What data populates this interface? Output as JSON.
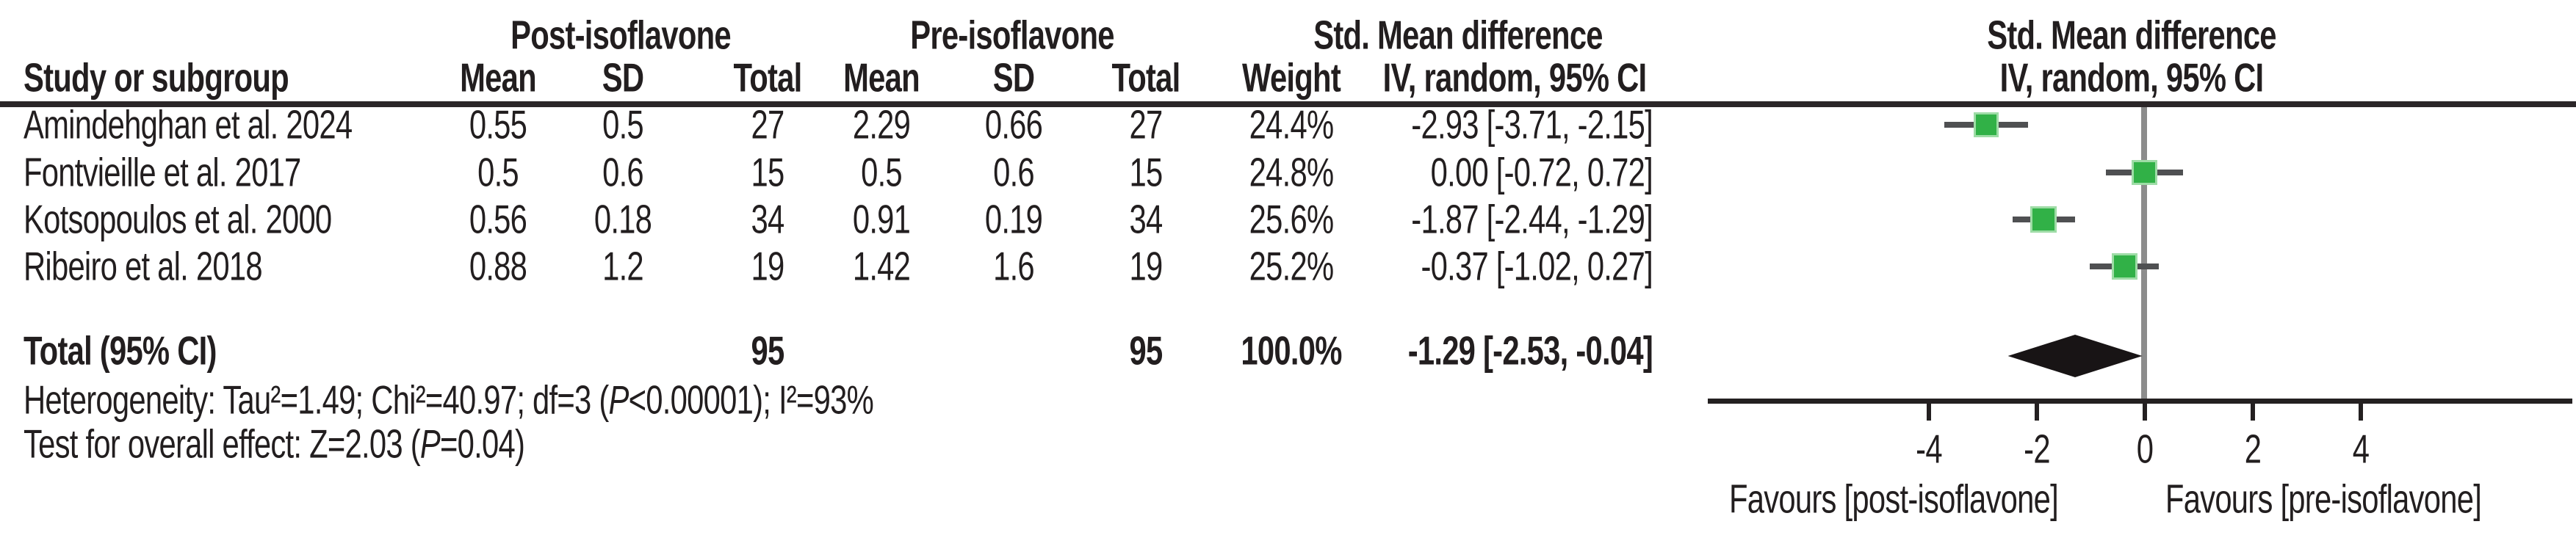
{
  "header": {
    "study_col": "Study or subgroup",
    "group_post": "Post-isoflavone",
    "group_pre": "Pre-isoflavone",
    "group_smd_table": "Std. Mean difference",
    "group_smd_plot": "Std. Mean difference",
    "mean": "Mean",
    "sd": "SD",
    "total": "Total",
    "weight": "Weight",
    "iv_table": "IV, random, 95% CI",
    "iv_plot": "IV, random, 95% CI"
  },
  "rows": [
    {
      "study": "Amindehghan et al. 2024",
      "post_mean": "0.55",
      "post_sd": "0.5",
      "post_total": "27",
      "pre_mean": "2.29",
      "pre_sd": "0.66",
      "pre_total": "27",
      "weight": "24.4%",
      "smd_ci": "-2.93 [-3.71, -2.15]"
    },
    {
      "study": "Fontvieille et al. 2017",
      "post_mean": "0.5",
      "post_sd": "0.6",
      "post_total": "15",
      "pre_mean": "0.5",
      "pre_sd": "0.6",
      "pre_total": "15",
      "weight": "24.8%",
      "smd_ci": "0.00 [-0.72, 0.72]"
    },
    {
      "study": "Kotsopoulos et al. 2000",
      "post_mean": "0.56",
      "post_sd": "0.18",
      "post_total": "34",
      "pre_mean": "0.91",
      "pre_sd": "0.19",
      "pre_total": "34",
      "weight": "25.6%",
      "smd_ci": "-1.87 [-2.44, -1.29]"
    },
    {
      "study": "Ribeiro et al. 2018",
      "post_mean": "0.88",
      "post_sd": "1.2",
      "post_total": "19",
      "pre_mean": "1.42",
      "pre_sd": "1.6",
      "pre_total": "19",
      "weight": "25.2%",
      "smd_ci": "-0.37 [-1.02, 0.27]"
    }
  ],
  "total_row": {
    "label": "Total (95% CI)",
    "post_total": "95",
    "pre_total": "95",
    "weight": "100.0%",
    "smd_ci": "-1.29 [-2.53, -0.04]"
  },
  "footer": {
    "heterogeneity_prefix": "Heterogeneity: Tau²=1.49; Chi²=40.97; df=3 (",
    "heterogeneity_p": "P",
    "heterogeneity_suffix": "<0.00001); I²=93%",
    "effect_prefix": "Test for overall effect: Z=2.03 (",
    "effect_p": "P",
    "effect_suffix": "=0.04)"
  },
  "axis": {
    "ticks": [
      {
        "value": -4,
        "label": "-4"
      },
      {
        "value": -2,
        "label": "-2"
      },
      {
        "value": 0,
        "label": "0"
      },
      {
        "value": 2,
        "label": "2"
      },
      {
        "value": 4,
        "label": "4"
      }
    ],
    "favours_left": "Favours [post-isoflavone]",
    "favours_right": "Favours [pre-isoflavone]"
  },
  "colors": {
    "marker_green": "#31b147",
    "marker_halo": "#9edca6",
    "ci_line": "#4f5052",
    "diamond_black": "#181415",
    "zero_line_gray": "#8c8c8c",
    "rule_black": "#2b2628",
    "text": "#221e1f"
  },
  "chart_data": {
    "type": "scatter",
    "subtype": "forest-plot",
    "title": "Std. Mean difference",
    "method_label": "IV, random, 95% CI",
    "effect_measure": "Std. Mean difference",
    "xlim": [
      -8.1,
      7.9
    ],
    "ticks": [
      -4,
      -2,
      0,
      2,
      4
    ],
    "zero_reference_line": 0,
    "legend_position": "none",
    "grid": false,
    "studies": [
      {
        "name": "Amindehghan et al. 2024",
        "est": -2.93,
        "lo": -3.71,
        "hi": -2.15,
        "weight_pct": 24.4,
        "post": {
          "mean": 0.55,
          "sd": 0.5,
          "total": 27
        },
        "pre": {
          "mean": 2.29,
          "sd": 0.66,
          "total": 27
        }
      },
      {
        "name": "Fontvieille et al. 2017",
        "est": 0.0,
        "lo": -0.72,
        "hi": 0.72,
        "weight_pct": 24.8,
        "post": {
          "mean": 0.5,
          "sd": 0.6,
          "total": 15
        },
        "pre": {
          "mean": 0.5,
          "sd": 0.6,
          "total": 15
        }
      },
      {
        "name": "Kotsopoulos et al. 2000",
        "est": -1.87,
        "lo": -2.44,
        "hi": -1.29,
        "weight_pct": 25.6,
        "post": {
          "mean": 0.56,
          "sd": 0.18,
          "total": 34
        },
        "pre": {
          "mean": 0.91,
          "sd": 0.19,
          "total": 34
        }
      },
      {
        "name": "Ribeiro et al. 2018",
        "est": -0.37,
        "lo": -1.02,
        "hi": 0.27,
        "weight_pct": 25.2,
        "post": {
          "mean": 0.88,
          "sd": 1.2,
          "total": 19
        },
        "pre": {
          "mean": 1.42,
          "sd": 1.6,
          "total": 19
        }
      }
    ],
    "total": {
      "label": "Total (95% CI)",
      "est": -1.29,
      "lo": -2.53,
      "hi": -0.04,
      "weight_pct": 100.0,
      "post_total": 95,
      "pre_total": 95
    },
    "heterogeneity": {
      "tau2": 1.49,
      "chi2": 40.97,
      "df": 3,
      "p": "<0.00001",
      "i2_pct": 93
    },
    "overall_effect": {
      "z": 2.03,
      "p": 0.04
    },
    "favours": [
      "Favours [post-isoflavone]",
      "Favours [pre-isoflavone]"
    ]
  }
}
